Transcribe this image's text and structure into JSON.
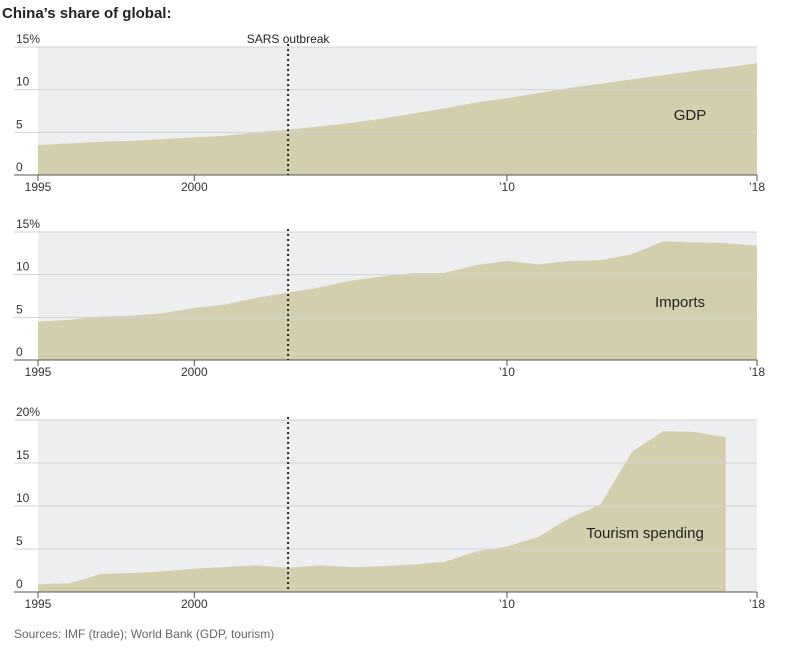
{
  "title": "China’s share of global:",
  "source": "Sources: IMF (trade); World Bank (GDP, tourism)",
  "chart_data": [
    {
      "type": "area",
      "annotation": {
        "text": "SARS outbreak",
        "x": 2003
      },
      "x": [
        1995,
        1996,
        1997,
        1998,
        1999,
        2000,
        2001,
        2002,
        2003,
        2004,
        2005,
        2006,
        2007,
        2008,
        2009,
        2010,
        2011,
        2012,
        2013,
        2014,
        2015,
        2016,
        2017,
        2018
      ],
      "series": [
        {
          "name": "GDP",
          "color": "#d3cfae",
          "values": [
            3.5,
            3.7,
            3.9,
            4.0,
            4.2,
            4.4,
            4.6,
            5.0,
            5.3,
            5.7,
            6.1,
            6.6,
            7.2,
            7.8,
            8.5,
            9.0,
            9.6,
            10.2,
            10.7,
            11.2,
            11.7,
            12.2,
            12.6,
            13.1
          ]
        }
      ],
      "xlim": [
        1995,
        2018
      ],
      "xticks": [
        1995,
        2000,
        {
          "value": 2010,
          "label": "’10"
        },
        {
          "value": 2018,
          "label": "’18"
        }
      ],
      "ylim": [
        0,
        15
      ],
      "yticks": [
        0,
        5,
        10,
        {
          "value": 15,
          "label": "15%"
        }
      ],
      "grid": true
    },
    {
      "type": "area",
      "annotation": {
        "x": 2003
      },
      "x": [
        1995,
        1996,
        1997,
        1998,
        1999,
        2000,
        2001,
        2002,
        2003,
        2004,
        2005,
        2006,
        2007,
        2008,
        2009,
        2010,
        2011,
        2012,
        2013,
        2014,
        2015,
        2016,
        2017,
        2018
      ],
      "series": [
        {
          "name": "Imports",
          "color": "#d3cfae",
          "values": [
            4.5,
            4.7,
            5.1,
            5.2,
            5.5,
            6.1,
            6.5,
            7.3,
            7.9,
            8.5,
            9.3,
            9.8,
            10.2,
            10.2,
            11.1,
            11.6,
            11.2,
            11.6,
            11.7,
            12.4,
            13.9,
            13.8,
            13.7,
            13.4
          ]
        }
      ],
      "xlim": [
        1995,
        2018
      ],
      "xticks": [
        1995,
        2000,
        {
          "value": 2010,
          "label": "’10"
        },
        {
          "value": 2018,
          "label": "’18"
        }
      ],
      "ylim": [
        0,
        15
      ],
      "yticks": [
        0,
        5,
        10,
        {
          "value": 15,
          "label": "15%"
        }
      ],
      "grid": true
    },
    {
      "type": "area",
      "annotation": {
        "x": 2003
      },
      "x": [
        1995,
        1996,
        1997,
        1998,
        1999,
        2000,
        2001,
        2002,
        2003,
        2004,
        2005,
        2006,
        2007,
        2008,
        2009,
        2010,
        2011,
        2012,
        2013,
        2014,
        2015,
        2016,
        2017
      ],
      "series": [
        {
          "name": "Tourism spending",
          "color": "#d3cfae",
          "values": [
            0.9,
            1.0,
            2.1,
            2.2,
            2.4,
            2.7,
            2.9,
            3.1,
            2.8,
            3.1,
            2.9,
            3.0,
            3.2,
            3.5,
            4.7,
            5.3,
            6.4,
            8.6,
            10.2,
            16.3,
            18.7,
            18.6,
            18.0
          ]
        }
      ],
      "xlim": [
        1995,
        2018
      ],
      "xticks": [
        1995,
        2000,
        {
          "value": 2010,
          "label": "’10"
        },
        {
          "value": 2018,
          "label": "’18"
        }
      ],
      "ylim": [
        0,
        20
      ],
      "yticks": [
        0,
        5,
        10,
        15,
        {
          "value": 20,
          "label": "20%"
        }
      ],
      "grid": true
    }
  ]
}
